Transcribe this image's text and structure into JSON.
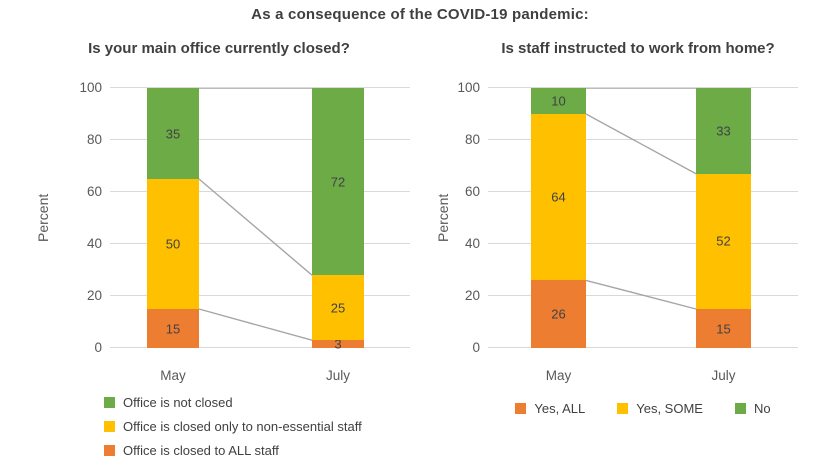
{
  "page_title": "As a consequence of the COVID-19 pandemic:",
  "colors": {
    "orange": "#ED7D31",
    "yellow": "#FFC000",
    "green": "#6CAB45",
    "connector": "#A6A6A6",
    "gridline": "#D9D9D9",
    "axis_text": "#595959",
    "label_text": "#3F4247",
    "title_text": "#404040"
  },
  "chart_data": [
    {
      "type": "bar",
      "subtype": "stacked-percent",
      "title": "Is your main office currently closed?",
      "ylabel": "Percent",
      "xlabel": "",
      "ylim": [
        0,
        100
      ],
      "yticks": [
        0,
        20,
        40,
        60,
        80,
        100
      ],
      "grid": true,
      "connectors": true,
      "categories": [
        "May",
        "July"
      ],
      "series": [
        {
          "name": "Office is closed to ALL staff",
          "color_key": "orange",
          "values": [
            15,
            3
          ]
        },
        {
          "name": "Office is closed only to non-essential staff",
          "color_key": "yellow",
          "values": [
            50,
            25
          ]
        },
        {
          "name": "Office is not closed",
          "color_key": "green",
          "values": [
            35,
            72
          ]
        }
      ],
      "legend": {
        "layout": "vertical",
        "position": "bottom-left",
        "entries": [
          {
            "label": "Office is not closed",
            "color_key": "green"
          },
          {
            "label": "Office is closed only to non-essential staff",
            "color_key": "yellow"
          },
          {
            "label": "Office is closed to ALL staff",
            "color_key": "orange"
          }
        ]
      }
    },
    {
      "type": "bar",
      "subtype": "stacked-percent",
      "title": "Is staff instructed to work from home?",
      "ylabel": "Percent",
      "xlabel": "",
      "ylim": [
        0,
        100
      ],
      "yticks": [
        0,
        20,
        40,
        60,
        80,
        100
      ],
      "grid": true,
      "connectors": true,
      "categories": [
        "May",
        "July"
      ],
      "series": [
        {
          "name": "Yes, ALL",
          "color_key": "orange",
          "values": [
            26,
            15
          ]
        },
        {
          "name": "Yes, SOME",
          "color_key": "yellow",
          "values": [
            64,
            52
          ]
        },
        {
          "name": "No",
          "color_key": "green",
          "values": [
            10,
            33
          ]
        }
      ],
      "legend": {
        "layout": "horizontal",
        "position": "bottom-center",
        "entries": [
          {
            "label": "Yes, ALL",
            "color_key": "orange"
          },
          {
            "label": "Yes, SOME",
            "color_key": "yellow"
          },
          {
            "label": "No",
            "color_key": "green"
          }
        ]
      }
    }
  ]
}
